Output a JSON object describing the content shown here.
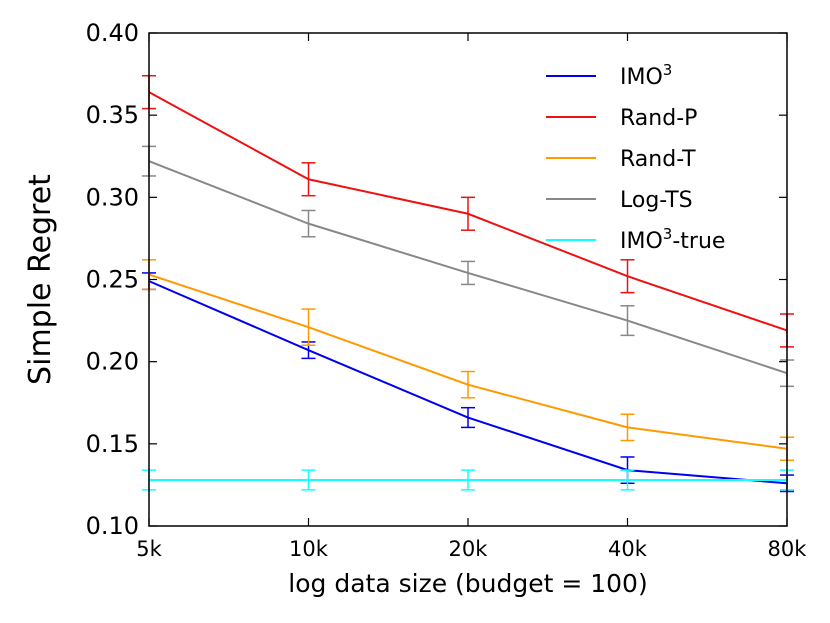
{
  "chart_data": {
    "type": "line",
    "title": "",
    "xlabel": "log data size (budget = 100)",
    "ylabel": "Simple Regret",
    "categories": [
      "5k",
      "10k",
      "20k",
      "40k",
      "80k"
    ],
    "ylim": [
      0.1,
      0.4
    ],
    "yticks": [
      "0.10",
      "0.15",
      "0.20",
      "0.25",
      "0.30",
      "0.35",
      "0.40"
    ],
    "grid": false,
    "legend_position": "top-right",
    "series": [
      {
        "name": "IMO",
        "superscript": "3",
        "color": "#0000ee",
        "values": [
          0.249,
          0.207,
          0.166,
          0.134,
          0.126
        ],
        "errors": [
          0.005,
          0.005,
          0.006,
          0.008,
          0.005
        ]
      },
      {
        "name": "Rand-P",
        "color": "#ee1111",
        "values": [
          0.364,
          0.311,
          0.29,
          0.252,
          0.219
        ],
        "errors": [
          0.01,
          0.01,
          0.01,
          0.01,
          0.01
        ]
      },
      {
        "name": "Rand-T",
        "color": "#ff9900",
        "values": [
          0.253,
          0.221,
          0.186,
          0.16,
          0.147
        ],
        "errors": [
          0.009,
          0.011,
          0.008,
          0.008,
          0.007
        ]
      },
      {
        "name": "Log-TS",
        "color": "#888888",
        "values": [
          0.322,
          0.284,
          0.254,
          0.225,
          0.193
        ],
        "errors": [
          0.009,
          0.008,
          0.007,
          0.009,
          0.008
        ]
      },
      {
        "name": "IMO",
        "superscript": "3",
        "suffix": "-true",
        "color": "#11ffff",
        "values": [
          0.128,
          0.128,
          0.128,
          0.128,
          0.128
        ],
        "errors": [
          0.006,
          0.006,
          0.006,
          0.006,
          0.006
        ]
      }
    ]
  }
}
